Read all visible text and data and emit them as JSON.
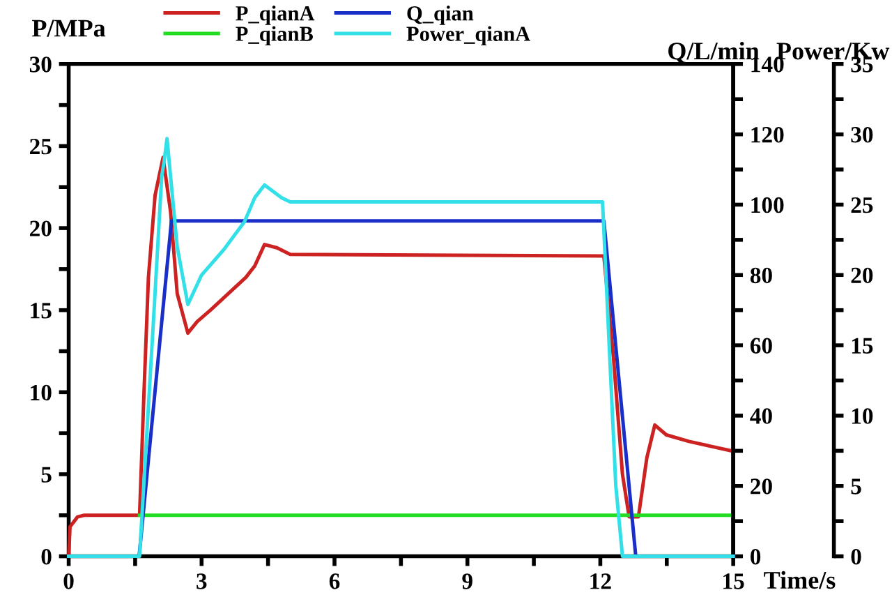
{
  "chart_data": {
    "type": "line",
    "xlabel": "Time/s",
    "ylabel": "P/MPa",
    "y2label": "Q/L/min",
    "y3label": "Power/Kw",
    "xlim": [
      0,
      15
    ],
    "xticks": [
      0,
      {
        "value": 1.5,
        "label": null
      },
      3,
      {
        "value": 4.5,
        "label": null
      },
      6,
      {
        "value": 7.5,
        "label": null
      },
      9,
      {
        "value": 10.5,
        "label": null
      },
      12,
      {
        "value": 13.5,
        "label": null
      },
      15
    ],
    "ylim": [
      0,
      30
    ],
    "yticks": [
      0,
      {
        "value": 2.5,
        "label": null
      },
      5,
      {
        "value": 7.5,
        "label": null
      },
      10,
      {
        "value": 12.5,
        "label": null
      },
      15,
      {
        "value": 17.5,
        "label": null
      },
      20,
      {
        "value": 22.5,
        "label": null
      },
      25,
      {
        "value": 27.5,
        "label": null
      },
      30
    ],
    "y2lim": [
      0,
      140
    ],
    "y2ticks": [
      0,
      {
        "value": 10,
        "label": null
      },
      20,
      {
        "value": 30,
        "label": null
      },
      40,
      {
        "value": 50,
        "label": null
      },
      60,
      {
        "value": 70,
        "label": null
      },
      80,
      {
        "value": 90,
        "label": null
      },
      100,
      {
        "value": 110,
        "label": null
      },
      120,
      {
        "value": 130,
        "label": null
      },
      140
    ],
    "y3lim": [
      0,
      35
    ],
    "y3ticks": [
      0,
      {
        "value": 2.5,
        "label": null
      },
      5,
      {
        "value": 7.5,
        "label": null
      },
      10,
      {
        "value": 12.5,
        "label": null
      },
      15,
      {
        "value": 17.5,
        "label": null
      },
      20,
      {
        "value": 22.5,
        "label": null
      },
      25,
      {
        "value": 27.5,
        "label": null
      },
      30,
      {
        "value": 32.5,
        "label": null
      },
      35
    ],
    "grid": false,
    "legend": "top",
    "line_style": "solid",
    "marker": "none",
    "series": [
      {
        "name": "P_qianA",
        "color": "#cc2222",
        "x": [
          0,
          0.03,
          0.2,
          0.35,
          1.6,
          1.7,
          1.8,
          1.95,
          2.13,
          2.3,
          2.45,
          2.69,
          2.9,
          3.2,
          3.6,
          4.0,
          4.2,
          4.42,
          4.7,
          5.0,
          12.08,
          12.3,
          12.5,
          12.65,
          12.86,
          13.05,
          13.23,
          13.49,
          14.0,
          15
        ],
        "values": [
          0,
          1.8,
          2.4,
          2.5,
          2.5,
          10,
          17,
          22,
          24.3,
          21,
          16,
          13.6,
          14.3,
          15,
          16,
          17,
          17.7,
          19.0,
          18.8,
          18.4,
          18.3,
          12,
          5,
          2.4,
          2.4,
          6,
          8.0,
          7.4,
          7.0,
          6.4
        ]
      },
      {
        "name": "P_qianB",
        "color": "#22dd22",
        "x": [
          1.6,
          15
        ],
        "values": [
          2.5,
          2.5
        ]
      },
      {
        "name": "Q_qian",
        "color": "#1a2fc8",
        "axis": "y2",
        "x": [
          0,
          1.59,
          2.32,
          12.08,
          12.8,
          15
        ],
        "values": [
          0,
          0,
          95.4,
          95.4,
          0,
          0
        ]
      },
      {
        "name": "Power_qianA",
        "color": "#33e0e8",
        "axis": "y3",
        "x": [
          0,
          1.6,
          1.9,
          2.1,
          2.15,
          2.22,
          2.3,
          2.45,
          2.69,
          3.0,
          3.5,
          3.97,
          4.2,
          4.42,
          4.8,
          5.0,
          12.05,
          12.2,
          12.35,
          12.5,
          15
        ],
        "values": [
          0,
          0,
          16,
          27,
          28,
          29.7,
          27,
          22,
          17.9,
          20,
          21.8,
          23.8,
          25.5,
          26.4,
          25.5,
          25.2,
          25.2,
          15,
          5,
          0,
          0
        ]
      }
    ]
  }
}
